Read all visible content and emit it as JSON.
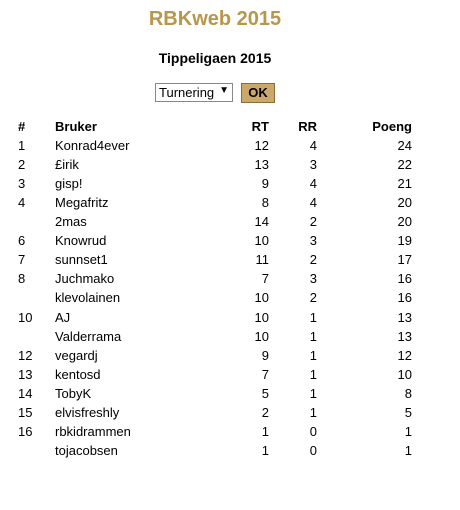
{
  "header": {
    "title": "RBKweb 2015",
    "subtitle": "Tippeligaen 2015"
  },
  "form": {
    "select_option": "Turnering",
    "button": "OK"
  },
  "table": {
    "columns": [
      "#",
      "Bruker",
      "RT",
      "RR",
      "Poeng"
    ],
    "rows": [
      [
        1,
        "Konrad4ever",
        12,
        4,
        24
      ],
      [
        2,
        "£irik",
        13,
        3,
        22
      ],
      [
        3,
        "gisp!",
        9,
        4,
        21
      ],
      [
        4,
        "Megafritz",
        8,
        4,
        20
      ],
      [
        null,
        "2mas",
        14,
        2,
        20
      ],
      [
        6,
        "Knowrud",
        10,
        3,
        19
      ],
      [
        7,
        "sunnset1",
        11,
        2,
        17
      ],
      [
        8,
        "Juchmako",
        7,
        3,
        16
      ],
      [
        null,
        "klevolainen",
        10,
        2,
        16
      ],
      [
        10,
        "AJ",
        10,
        1,
        13
      ],
      [
        null,
        "Valderrama",
        10,
        1,
        13
      ],
      [
        12,
        "vegardj",
        9,
        1,
        12
      ],
      [
        13,
        "kentosd",
        7,
        1,
        10
      ],
      [
        14,
        "TobyK",
        5,
        1,
        8
      ],
      [
        15,
        "elvisfreshly",
        2,
        1,
        5
      ],
      [
        16,
        "rbkidrammen",
        1,
        0,
        1
      ],
      [
        null,
        "tojacobsen",
        1,
        0,
        1
      ]
    ]
  }
}
